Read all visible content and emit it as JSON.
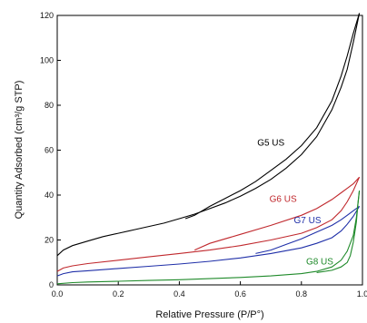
{
  "chart_data": {
    "type": "line",
    "title": "",
    "xlabel": "Relative Pressure (P/P°)",
    "ylabel": "Quantity Adsorbed (cm³/g STP)",
    "xlim": [
      0.0,
      1.0
    ],
    "ylim": [
      0,
      120
    ],
    "xticks": [
      "0.0",
      "0.2",
      "0.4",
      "0.6",
      "0.8",
      "1.0"
    ],
    "yticks": [
      "0",
      "20",
      "40",
      "60",
      "80",
      "100",
      "120"
    ],
    "grid": false,
    "series": [
      {
        "name": "G5 US",
        "color": "#000000",
        "label_at": [
          0.7,
          62
        ],
        "adsorption": {
          "x": [
            0.0,
            0.02,
            0.05,
            0.1,
            0.15,
            0.2,
            0.25,
            0.3,
            0.35,
            0.4,
            0.45,
            0.5,
            0.55,
            0.6,
            0.65,
            0.7,
            0.75,
            0.8,
            0.85,
            0.9,
            0.93,
            0.95,
            0.97,
            0.99
          ],
          "y": [
            13,
            15.5,
            17.5,
            19.5,
            21.5,
            23,
            24.5,
            26,
            27.5,
            29.5,
            31.5,
            34,
            36.5,
            39.5,
            43,
            47,
            52,
            58,
            66,
            78,
            88,
            96,
            108,
            121
          ]
        },
        "desorption": {
          "x": [
            0.99,
            0.97,
            0.95,
            0.93,
            0.9,
            0.85,
            0.8,
            0.75,
            0.7,
            0.65,
            0.6,
            0.55,
            0.5,
            0.45,
            0.42
          ],
          "y": [
            121,
            112,
            102,
            93,
            82,
            70,
            62,
            56,
            51,
            46,
            42,
            38.5,
            35,
            31,
            29.5
          ]
        }
      },
      {
        "name": "G6 US",
        "color": "#c0282d",
        "label_at": [
          0.74,
          37
        ],
        "adsorption": {
          "x": [
            0.0,
            0.02,
            0.05,
            0.1,
            0.2,
            0.3,
            0.4,
            0.5,
            0.6,
            0.7,
            0.8,
            0.85,
            0.9,
            0.93,
            0.95,
            0.97,
            0.99
          ],
          "y": [
            6,
            7.5,
            8.5,
            9.5,
            11,
            12.5,
            14,
            15.5,
            17.5,
            20,
            23,
            25.5,
            29,
            33,
            37,
            42,
            48
          ]
        },
        "desorption": {
          "x": [
            0.99,
            0.97,
            0.95,
            0.93,
            0.9,
            0.85,
            0.8,
            0.7,
            0.6,
            0.5,
            0.45
          ],
          "y": [
            48,
            45,
            43,
            41,
            38,
            34,
            31,
            26.5,
            22.5,
            18.5,
            15.5
          ]
        }
      },
      {
        "name": "G7 US",
        "color": "#1f2fa8",
        "label_at": [
          0.82,
          27.5
        ],
        "adsorption": {
          "x": [
            0.0,
            0.02,
            0.05,
            0.1,
            0.2,
            0.3,
            0.4,
            0.5,
            0.6,
            0.7,
            0.8,
            0.85,
            0.9,
            0.93,
            0.95,
            0.97,
            0.99
          ],
          "y": [
            4,
            5,
            5.8,
            6.3,
            7.3,
            8.3,
            9.3,
            10.5,
            12,
            14,
            16.5,
            18.5,
            21,
            24,
            27,
            30.5,
            35
          ]
        },
        "desorption": {
          "x": [
            0.99,
            0.97,
            0.95,
            0.93,
            0.9,
            0.85,
            0.8,
            0.75,
            0.7,
            0.65
          ],
          "y": [
            35,
            33,
            31,
            29,
            26.5,
            23.5,
            20.5,
            18,
            15.5,
            14
          ]
        }
      },
      {
        "name": "G8 US",
        "color": "#1f8a2a",
        "label_at": [
          0.86,
          9
        ],
        "adsorption": {
          "x": [
            0.0,
            0.05,
            0.1,
            0.2,
            0.3,
            0.4,
            0.5,
            0.6,
            0.7,
            0.8,
            0.85,
            0.9,
            0.93,
            0.95,
            0.97,
            0.98,
            0.99
          ],
          "y": [
            0.5,
            1,
            1.3,
            1.6,
            2,
            2.3,
            2.8,
            3.3,
            4,
            5,
            6,
            8,
            11,
            15,
            22,
            30,
            42
          ]
        },
        "desorption": {
          "x": [
            0.99,
            0.985,
            0.98,
            0.97,
            0.96,
            0.95,
            0.93,
            0.9,
            0.85
          ],
          "y": [
            42,
            36,
            28,
            19,
            13,
            10,
            8,
            6.5,
            5.5
          ]
        }
      }
    ]
  }
}
